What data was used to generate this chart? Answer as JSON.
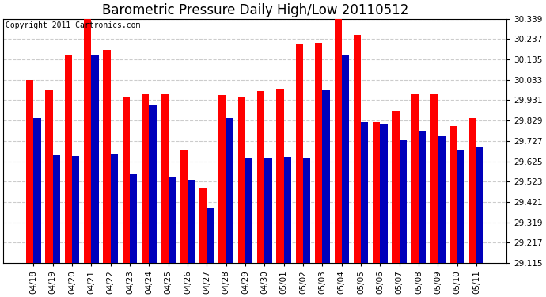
{
  "title": "Barometric Pressure Daily High/Low 20110512",
  "copyright": "Copyright 2011 Cartronics.com",
  "background_color": "#ffffff",
  "plot_bg_color": "#ffffff",
  "bar_color_high": "#ff0000",
  "bar_color_low": "#0000bb",
  "grid_color": "#cccccc",
  "dates": [
    "04/18",
    "04/19",
    "04/20",
    "04/21",
    "04/22",
    "04/23",
    "04/24",
    "04/25",
    "04/26",
    "04/27",
    "04/28",
    "04/29",
    "04/30",
    "05/01",
    "05/02",
    "05/03",
    "05/04",
    "05/05",
    "05/06",
    "05/07",
    "05/08",
    "05/09",
    "05/10",
    "05/11"
  ],
  "highs": [
    30.033,
    29.98,
    30.155,
    30.36,
    30.185,
    29.95,
    29.96,
    29.96,
    29.68,
    29.49,
    29.955,
    29.95,
    29.975,
    29.985,
    30.21,
    30.22,
    30.38,
    30.26,
    29.82,
    29.878,
    29.96,
    29.96,
    29.8,
    29.84
  ],
  "lows": [
    29.84,
    29.655,
    29.65,
    30.155,
    29.66,
    29.56,
    29.91,
    29.545,
    29.53,
    29.39,
    29.84,
    29.64,
    29.64,
    29.645,
    29.64,
    29.98,
    30.155,
    29.82,
    29.81,
    29.73,
    29.773,
    29.75,
    29.68,
    29.7
  ],
  "ylim_min": 29.115,
  "ylim_max": 30.339,
  "yticks": [
    29.115,
    29.217,
    29.319,
    29.421,
    29.523,
    29.625,
    29.727,
    29.829,
    29.931,
    30.033,
    30.135,
    30.237,
    30.339
  ],
  "bar_width": 0.38,
  "title_fontsize": 12,
  "tick_fontsize": 7.5,
  "copyright_fontsize": 7
}
